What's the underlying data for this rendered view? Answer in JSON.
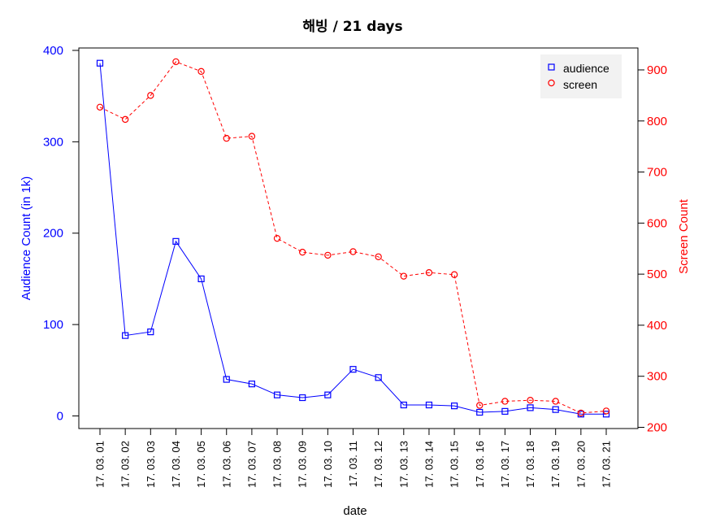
{
  "chart_data": {
    "type": "line",
    "title": "해빙 / 21 days",
    "xlabel": "date",
    "categories": [
      "17. 03. 01",
      "17. 03. 02",
      "17. 03. 03",
      "17. 03. 04",
      "17. 03. 05",
      "17. 03. 06",
      "17. 03. 07",
      "17. 03. 08",
      "17. 03. 09",
      "17. 03. 10",
      "17. 03. 11",
      "17. 03. 12",
      "17. 03. 13",
      "17. 03. 14",
      "17. 03. 15",
      "17. 03. 16",
      "17. 03. 17",
      "17. 03. 18",
      "17. 03. 19",
      "17. 03. 20",
      "17. 03. 21"
    ],
    "y_left": {
      "label": "Audience Count (in 1k)",
      "range": [
        0,
        400
      ],
      "ticks": [
        0,
        100,
        200,
        300,
        400
      ],
      "color": "#0000ff"
    },
    "y_right": {
      "label": "Screen Count",
      "range": [
        200,
        900
      ],
      "ticks": [
        200,
        300,
        400,
        500,
        600,
        700,
        800,
        900
      ],
      "color": "#ff0000"
    },
    "series": [
      {
        "name": "audience",
        "axis": "left",
        "color": "#0000ff",
        "marker": "square",
        "line": "solid",
        "values": [
          386,
          88,
          92,
          191,
          150,
          40,
          35,
          23,
          20,
          23,
          51,
          42,
          12,
          12,
          11,
          4,
          5,
          9,
          7,
          2,
          2
        ]
      },
      {
        "name": "screen",
        "axis": "right",
        "color": "#ff0000",
        "marker": "circle",
        "line": "dashed",
        "values": [
          827,
          803,
          850,
          916,
          897,
          766,
          770,
          570,
          543,
          537,
          544,
          534,
          496,
          503,
          499,
          243,
          251,
          253,
          251,
          228,
          232
        ]
      }
    ],
    "legend": "top-right",
    "grid": false
  }
}
